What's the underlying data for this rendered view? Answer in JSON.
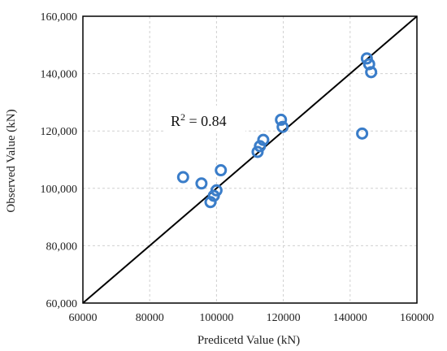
{
  "chart_data": {
    "type": "scatter",
    "xlabel": "Predicetd Value (kN)",
    "ylabel": "Observed Value (kN)",
    "xlim": [
      60000,
      160000
    ],
    "ylim": [
      60000,
      160000
    ],
    "x_ticks": [
      "60000",
      "80000",
      "100000",
      "120000",
      "140000",
      "160000"
    ],
    "y_ticks": [
      "60,000",
      "80,000",
      "100,000",
      "120,000",
      "140,000",
      "160,000"
    ],
    "grid": "dashed",
    "reference_line": "y = x",
    "annotation": {
      "prefix": "R",
      "superscript": "2",
      "text": " =  0.84"
    },
    "marker_color": "#3a7dc9",
    "points": [
      {
        "x": 90000,
        "y": 103900
      },
      {
        "x": 95500,
        "y": 101700
      },
      {
        "x": 98200,
        "y": 95200
      },
      {
        "x": 99200,
        "y": 97400
      },
      {
        "x": 100000,
        "y": 99300
      },
      {
        "x": 101300,
        "y": 106300
      },
      {
        "x": 112300,
        "y": 112700
      },
      {
        "x": 113000,
        "y": 114700
      },
      {
        "x": 114000,
        "y": 116900
      },
      {
        "x": 119300,
        "y": 123900
      },
      {
        "x": 119800,
        "y": 121400
      },
      {
        "x": 143600,
        "y": 119100
      },
      {
        "x": 145000,
        "y": 145300
      },
      {
        "x": 145700,
        "y": 143300
      },
      {
        "x": 146300,
        "y": 140500
      }
    ]
  }
}
